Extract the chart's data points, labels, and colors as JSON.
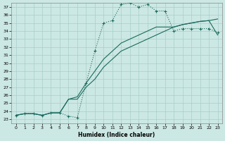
{
  "xlabel": "Humidex (Indice chaleur)",
  "xlim": [
    -0.5,
    23.5
  ],
  "ylim": [
    22.5,
    37.5
  ],
  "yticks": [
    23,
    24,
    25,
    26,
    27,
    28,
    29,
    30,
    31,
    32,
    33,
    34,
    35,
    36,
    37
  ],
  "xticks": [
    0,
    1,
    2,
    3,
    4,
    5,
    6,
    7,
    8,
    9,
    10,
    11,
    12,
    13,
    14,
    15,
    16,
    17,
    18,
    19,
    20,
    21,
    22,
    23
  ],
  "bg_color": "#cce8e4",
  "grid_color": "#a8cdc9",
  "line_color": "#1a6b5e",
  "line1_x": [
    0,
    1,
    2,
    3,
    4,
    5,
    6,
    7,
    8,
    9,
    10,
    11,
    12,
    13,
    14,
    15,
    16,
    17,
    18,
    19,
    20,
    21,
    22,
    23
  ],
  "line1_y": [
    23.5,
    23.7,
    23.7,
    23.5,
    23.8,
    23.8,
    23.4,
    23.2,
    27.5,
    31.5,
    35.0,
    35.3,
    37.3,
    37.5,
    37.0,
    37.3,
    36.5,
    36.5,
    34.0,
    34.3,
    34.3,
    34.3,
    34.3,
    33.8
  ],
  "line2_x": [
    0,
    1,
    2,
    3,
    4,
    5,
    6,
    7,
    8,
    9,
    10,
    11,
    12,
    13,
    14,
    15,
    16,
    17,
    18,
    19,
    20,
    21,
    22,
    23
  ],
  "line2_y": [
    23.5,
    23.7,
    23.7,
    23.5,
    23.8,
    23.8,
    25.5,
    25.5,
    27.0,
    28.0,
    29.5,
    30.5,
    31.5,
    32.0,
    32.5,
    33.0,
    33.5,
    34.0,
    34.5,
    34.8,
    35.0,
    35.2,
    35.3,
    35.5
  ],
  "line3_x": [
    0,
    1,
    2,
    3,
    4,
    5,
    6,
    7,
    8,
    9,
    10,
    11,
    12,
    13,
    14,
    15,
    16,
    17,
    18,
    19,
    20,
    21,
    22,
    23
  ],
  "line3_y": [
    23.5,
    23.7,
    23.7,
    23.5,
    23.8,
    23.8,
    25.5,
    25.8,
    27.5,
    29.0,
    30.5,
    31.5,
    32.5,
    33.0,
    33.5,
    34.0,
    34.5,
    34.5,
    34.5,
    34.8,
    35.0,
    35.2,
    35.3,
    33.5
  ],
  "markersize": 3,
  "linewidth": 0.8
}
